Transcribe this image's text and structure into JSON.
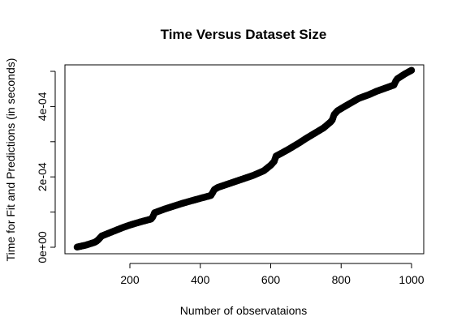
{
  "chart_data": {
    "type": "scatter",
    "title": "Time Versus Dataset Size",
    "xlabel": "Number of observataions",
    "ylabel": "Time for Fit and Predictions (in seconds)",
    "xlim": [
      50,
      1000
    ],
    "ylim": [
      0,
      0.0005
    ],
    "x_ticks": [
      200,
      400,
      600,
      800,
      1000
    ],
    "x_tick_labels": [
      "200",
      "400",
      "600",
      "800",
      "1000"
    ],
    "y_ticks": [
      0,
      0.0001,
      0.0002,
      0.0003,
      0.0004,
      0.0005
    ],
    "y_tick_labels": [
      "0e+00",
      "",
      "2e-04",
      "",
      "4e-04",
      ""
    ],
    "grid": false,
    "legend": "none",
    "point_color": "#000000",
    "x": [
      50,
      75,
      100,
      105,
      110,
      120,
      150,
      180,
      200,
      230,
      260,
      265,
      270,
      300,
      350,
      400,
      430,
      435,
      440,
      450,
      500,
      550,
      580,
      600,
      610,
      615,
      630,
      650,
      680,
      700,
      720,
      750,
      770,
      775,
      780,
      790,
      810,
      850,
      880,
      900,
      950,
      955,
      960,
      980,
      1000
    ],
    "y": [
      5e-07,
      6e-06,
      1.4e-05,
      1.7e-05,
      2.1e-05,
      3.2e-05,
      4.4e-05,
      5.6e-05,
      6.3e-05,
      7.2e-05,
      8e-05,
      8.6e-05,
      9.8e-05,
      0.000109,
      0.000125,
      0.000139,
      0.000147,
      0.000155,
      0.000164,
      0.00017,
      0.000187,
      0.000204,
      0.000217,
      0.000233,
      0.000244,
      0.000259,
      0.000267,
      0.000278,
      0.000296,
      0.000309,
      0.000321,
      0.000339,
      0.000356,
      0.000362,
      0.000377,
      0.000388,
      0.0004,
      0.000423,
      0.000434,
      0.000443,
      0.000461,
      0.000472,
      0.000479,
      0.000492,
      0.000503
    ]
  }
}
